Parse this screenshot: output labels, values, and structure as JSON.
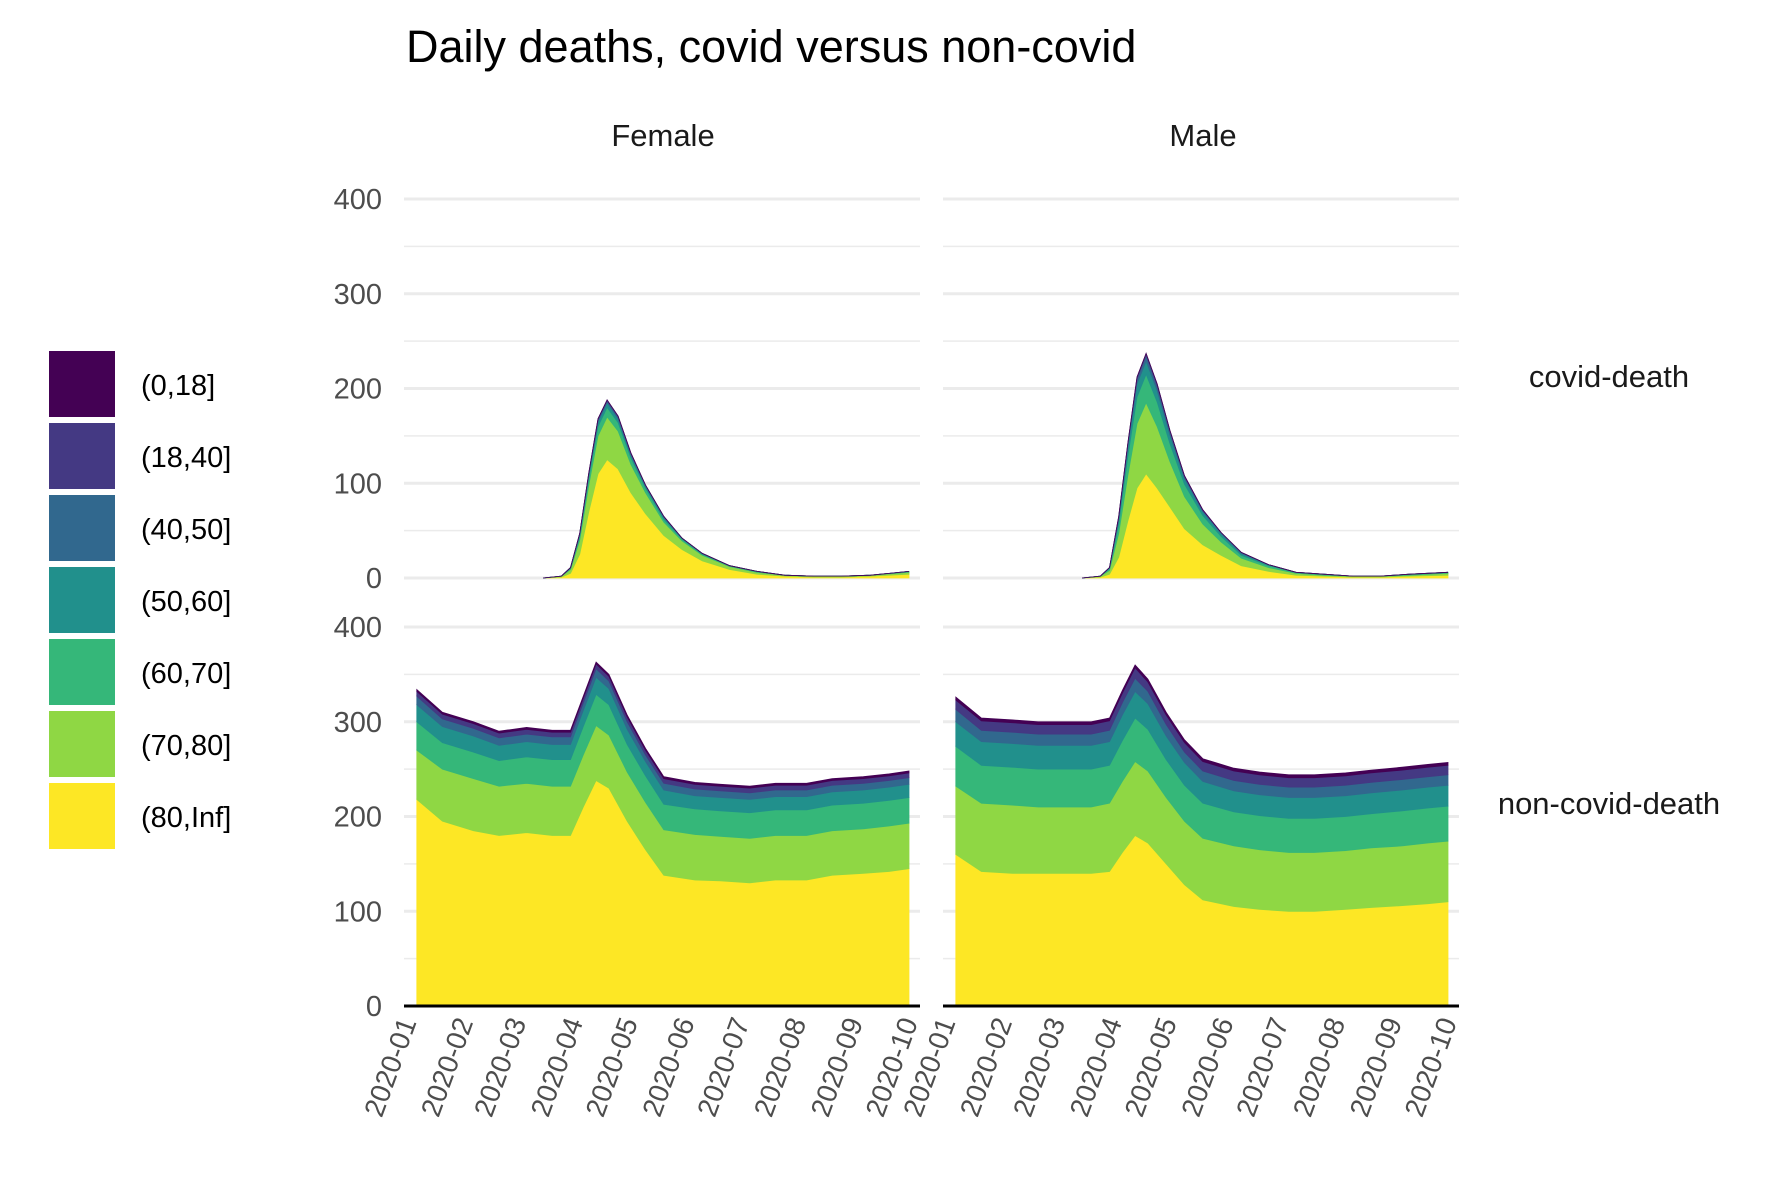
{
  "chart_data": {
    "type": "area",
    "stacked": true,
    "title": "Daily deaths, covid versus non-covid",
    "xlabel": "",
    "ylabel": "",
    "facet_columns": [
      "Female",
      "Male"
    ],
    "facet_rows": [
      "covid-death",
      "non-covid-death"
    ],
    "ylim": [
      0,
      420
    ],
    "yticks": [
      0,
      100,
      200,
      300,
      400
    ],
    "grid": true,
    "x_range": [
      "2020-01-01",
      "2020-09-26"
    ],
    "xticks": [
      "2020-01",
      "2020-02",
      "2020-03",
      "2020-04",
      "2020-05",
      "2020-06",
      "2020-07",
      "2020-08",
      "2020-09",
      "2020-10"
    ],
    "legend_position": "left",
    "legend": [
      {
        "label": "(0,18]",
        "color": "#440154"
      },
      {
        "label": "(18,40]",
        "color": "#443983"
      },
      {
        "label": "(40,50]",
        "color": "#31688E"
      },
      {
        "label": "(50,60]",
        "color": "#21908C"
      },
      {
        "label": "(60,70]",
        "color": "#35B779"
      },
      {
        "label": "(70,80]",
        "color": "#8FD744"
      },
      {
        "label": "(80,Inf]",
        "color": "#FDE725"
      }
    ],
    "series_order_bottom_to_top": [
      "(80,Inf]",
      "(70,80]",
      "(60,70]",
      "(50,60]",
      "(40,50]",
      "(18,40]",
      "(0,18]"
    ],
    "panels": [
      {
        "column": "Female",
        "row": "covid-death",
        "dates": [
          "2020-03-10",
          "2020-03-20",
          "2020-03-25",
          "2020-03-30",
          "2020-04-04",
          "2020-04-09",
          "2020-04-14",
          "2020-04-20",
          "2020-04-27",
          "2020-05-05",
          "2020-05-15",
          "2020-05-25",
          "2020-06-05",
          "2020-06-20",
          "2020-07-05",
          "2020-07-20",
          "2020-08-05",
          "2020-08-20",
          "2020-09-05",
          "2020-09-26"
        ],
        "bands": {
          "(80,Inf]": [
            0,
            1,
            5,
            25,
            70,
            110,
            125,
            115,
            90,
            68,
            45,
            30,
            18,
            9,
            4,
            2,
            1,
            1,
            2,
            4
          ],
          "(70,80]": [
            0,
            1,
            4,
            15,
            28,
            40,
            45,
            40,
            30,
            22,
            14,
            9,
            6,
            3,
            2,
            1,
            1,
            1,
            1,
            2
          ],
          "(60,70]": [
            0,
            0,
            1,
            4,
            8,
            10,
            10,
            9,
            7,
            5,
            3,
            2,
            1,
            1,
            1,
            0,
            0,
            0,
            0,
            1
          ],
          "(50,60]": [
            0,
            0,
            1,
            2,
            3,
            5,
            5,
            4,
            3,
            2,
            2,
            1,
            1,
            0,
            0,
            0,
            0,
            0,
            0,
            0
          ],
          "(40,50]": [
            0,
            0,
            0,
            1,
            1,
            2,
            2,
            2,
            1,
            1,
            1,
            0,
            0,
            0,
            0,
            0,
            0,
            0,
            0,
            0
          ],
          "(18,40]": [
            0,
            0,
            0,
            0,
            1,
            1,
            1,
            1,
            1,
            0,
            0,
            0,
            0,
            0,
            0,
            0,
            0,
            0,
            0,
            0
          ],
          "(0,18]": [
            0,
            0,
            0,
            0,
            0,
            0,
            0,
            0,
            0,
            0,
            0,
            0,
            0,
            0,
            0,
            0,
            0,
            0,
            0,
            0
          ]
        }
      },
      {
        "column": "Male",
        "row": "covid-death",
        "dates": [
          "2020-03-10",
          "2020-03-20",
          "2020-03-25",
          "2020-03-30",
          "2020-04-04",
          "2020-04-09",
          "2020-04-14",
          "2020-04-20",
          "2020-04-27",
          "2020-05-05",
          "2020-05-15",
          "2020-05-25",
          "2020-06-05",
          "2020-06-20",
          "2020-07-05",
          "2020-07-20",
          "2020-08-05",
          "2020-08-20",
          "2020-09-05",
          "2020-09-26"
        ],
        "bands": {
          "(80,Inf]": [
            0,
            1,
            4,
            22,
            60,
            95,
            110,
            95,
            75,
            52,
            35,
            24,
            13,
            7,
            3,
            2,
            1,
            1,
            2,
            3
          ],
          "(70,80]": [
            0,
            1,
            4,
            25,
            48,
            68,
            75,
            65,
            48,
            34,
            22,
            14,
            8,
            4,
            2,
            1,
            1,
            1,
            1,
            2
          ],
          "(60,70]": [
            0,
            0,
            2,
            10,
            20,
            28,
            30,
            26,
            19,
            13,
            9,
            6,
            3,
            2,
            1,
            1,
            0,
            0,
            1,
            1
          ],
          "(50,60]": [
            0,
            0,
            1,
            5,
            10,
            14,
            14,
            12,
            9,
            6,
            4,
            3,
            2,
            1,
            0,
            0,
            0,
            0,
            0,
            0
          ],
          "(40,50]": [
            0,
            0,
            0,
            2,
            3,
            5,
            6,
            5,
            4,
            2,
            1,
            1,
            1,
            0,
            0,
            0,
            0,
            0,
            0,
            0
          ],
          "(18,40]": [
            0,
            0,
            0,
            1,
            1,
            2,
            2,
            2,
            1,
            1,
            1,
            0,
            0,
            0,
            0,
            0,
            0,
            0,
            0,
            0
          ],
          "(0,18]": [
            0,
            0,
            0,
            0,
            0,
            0,
            0,
            0,
            0,
            0,
            0,
            0,
            0,
            0,
            0,
            0,
            0,
            0,
            0,
            0
          ]
        }
      },
      {
        "column": "Female",
        "row": "non-covid-death",
        "dates": [
          "2020-01-01",
          "2020-01-15",
          "2020-02-01",
          "2020-02-15",
          "2020-03-01",
          "2020-03-15",
          "2020-03-25",
          "2020-04-01",
          "2020-04-08",
          "2020-04-15",
          "2020-04-25",
          "2020-05-05",
          "2020-05-15",
          "2020-06-01",
          "2020-06-15",
          "2020-07-01",
          "2020-07-15",
          "2020-08-01",
          "2020-08-15",
          "2020-09-01",
          "2020-09-15",
          "2020-09-26"
        ],
        "bands": {
          "(80,Inf]": [
            218,
            195,
            185,
            180,
            183,
            180,
            180,
            210,
            238,
            230,
            195,
            165,
            138,
            133,
            132,
            130,
            133,
            133,
            138,
            140,
            142,
            145
          ],
          "(70,80]": [
            52,
            55,
            55,
            52,
            52,
            52,
            52,
            55,
            58,
            56,
            52,
            50,
            48,
            48,
            47,
            47,
            47,
            47,
            47,
            47,
            48,
            48
          ],
          "(60,70]": [
            30,
            28,
            28,
            27,
            28,
            28,
            28,
            30,
            33,
            32,
            29,
            28,
            27,
            27,
            27,
            27,
            27,
            27,
            27,
            27,
            27,
            27
          ],
          "(50,60]": [
            18,
            17,
            17,
            16,
            16,
            16,
            16,
            17,
            18,
            17,
            16,
            15,
            15,
            14,
            14,
            14,
            14,
            14,
            14,
            14,
            14,
            14
          ],
          "(40,50]": [
            9,
            8,
            8,
            8,
            8,
            8,
            8,
            8,
            9,
            8,
            8,
            7,
            7,
            7,
            7,
            7,
            7,
            7,
            7,
            7,
            7,
            7
          ],
          "(18,40]": [
            5,
            5,
            5,
            5,
            5,
            5,
            5,
            5,
            5,
            5,
            5,
            5,
            5,
            5,
            5,
            5,
            5,
            5,
            5,
            5,
            5,
            5
          ],
          "(0,18]": [
            2,
            2,
            2,
            2,
            2,
            2,
            2,
            2,
            2,
            2,
            2,
            2,
            2,
            2,
            2,
            2,
            2,
            2,
            2,
            2,
            2,
            2
          ]
        }
      },
      {
        "column": "Male",
        "row": "non-covid-death",
        "dates": [
          "2020-01-01",
          "2020-01-15",
          "2020-02-01",
          "2020-02-15",
          "2020-03-01",
          "2020-03-15",
          "2020-03-25",
          "2020-04-01",
          "2020-04-08",
          "2020-04-15",
          "2020-04-25",
          "2020-05-05",
          "2020-05-15",
          "2020-06-01",
          "2020-06-15",
          "2020-07-01",
          "2020-07-15",
          "2020-08-01",
          "2020-08-15",
          "2020-09-01",
          "2020-09-15",
          "2020-09-26"
        ],
        "bands": {
          "(80,Inf]": [
            160,
            142,
            140,
            140,
            140,
            140,
            142,
            162,
            180,
            172,
            150,
            128,
            112,
            105,
            102,
            100,
            100,
            102,
            104,
            106,
            108,
            110
          ],
          "(70,80]": [
            72,
            72,
            72,
            70,
            70,
            70,
            72,
            75,
            78,
            76,
            70,
            67,
            65,
            64,
            63,
            62,
            62,
            62,
            63,
            63,
            64,
            64
          ],
          "(60,70]": [
            42,
            40,
            40,
            40,
            40,
            40,
            40,
            43,
            46,
            44,
            40,
            38,
            37,
            36,
            36,
            36,
            36,
            36,
            36,
            37,
            37,
            37
          ],
          "(50,60]": [
            26,
            25,
            25,
            25,
            25,
            25,
            25,
            27,
            28,
            27,
            25,
            24,
            23,
            22,
            22,
            22,
            22,
            22,
            22,
            22,
            22,
            22
          ],
          "(40,50]": [
            13,
            12,
            12,
            12,
            12,
            12,
            12,
            13,
            14,
            13,
            12,
            11,
            11,
            11,
            11,
            11,
            11,
            11,
            11,
            11,
            11,
            11
          ],
          "(18,40]": [
            10,
            10,
            10,
            10,
            10,
            10,
            10,
            10,
            11,
            10,
            10,
            10,
            10,
            10,
            10,
            10,
            10,
            10,
            10,
            10,
            10,
            10
          ],
          "(0,18]": [
            3,
            3,
            3,
            3,
            3,
            3,
            3,
            3,
            3,
            3,
            3,
            3,
            3,
            3,
            3,
            3,
            3,
            3,
            3,
            3,
            3,
            3
          ]
        }
      }
    ]
  }
}
